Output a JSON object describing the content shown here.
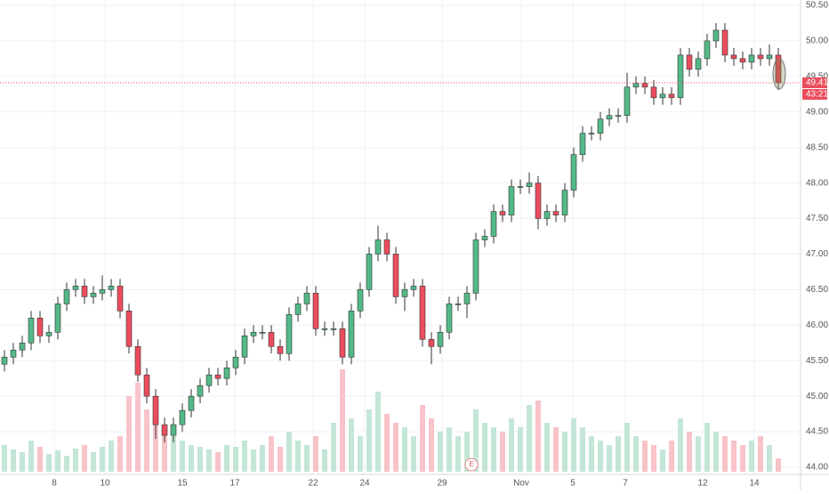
{
  "chart_data": {
    "type": "candlestick",
    "open": [
      45.45,
      45.55,
      45.65,
      45.75,
      46.1,
      45.85,
      45.9,
      46.3,
      46.5,
      46.55,
      46.4,
      46.45,
      46.5,
      46.55,
      46.2,
      45.7,
      45.3,
      45.0,
      44.6,
      44.45,
      44.6,
      44.8,
      45.0,
      45.15,
      45.3,
      45.25,
      45.4,
      45.55,
      45.85,
      45.9,
      45.9,
      45.7,
      45.6,
      46.15,
      46.3,
      46.45,
      45.95,
      45.95,
      45.95,
      45.55,
      46.2,
      46.5,
      47.0,
      47.2,
      47.0,
      46.4,
      46.5,
      46.55,
      45.8,
      45.7,
      45.9,
      46.3,
      46.3,
      46.45,
      47.2,
      47.25,
      47.6,
      47.55,
      47.95,
      47.95,
      48.0,
      47.5,
      47.6,
      47.55,
      47.9,
      48.4,
      48.7,
      48.7,
      48.9,
      48.95,
      48.95,
      49.35,
      49.4,
      49.35,
      49.2,
      49.25,
      49.2,
      49.8,
      49.6,
      49.75,
      50.0,
      50.15,
      49.8,
      49.75,
      49.7,
      49.8,
      49.75,
      49.8
    ],
    "high": [
      45.65,
      45.75,
      45.85,
      46.2,
      46.2,
      46.0,
      46.4,
      46.6,
      46.65,
      46.65,
      46.55,
      46.7,
      46.65,
      46.65,
      46.3,
      45.8,
      45.4,
      45.1,
      44.7,
      44.7,
      44.9,
      45.1,
      45.25,
      45.4,
      45.4,
      45.5,
      45.65,
      45.95,
      46.0,
      46.0,
      46.0,
      45.8,
      46.25,
      46.4,
      46.55,
      46.55,
      46.05,
      46.05,
      46.05,
      46.3,
      46.6,
      47.1,
      47.4,
      47.3,
      47.1,
      46.6,
      46.65,
      46.65,
      45.9,
      46.0,
      46.4,
      46.4,
      46.55,
      47.3,
      47.35,
      47.7,
      47.7,
      48.05,
      48.05,
      48.15,
      48.1,
      47.7,
      47.7,
      48.0,
      48.5,
      48.8,
      48.8,
      49.0,
      49.05,
      49.05,
      49.55,
      49.5,
      49.5,
      49.45,
      49.35,
      49.35,
      49.9,
      49.9,
      49.85,
      50.1,
      50.25,
      50.25,
      49.9,
      49.85,
      49.9,
      49.9,
      49.95,
      49.9
    ],
    "low": [
      45.35,
      45.45,
      45.55,
      45.65,
      45.75,
      45.75,
      45.8,
      46.2,
      46.4,
      46.3,
      46.3,
      46.35,
      46.4,
      46.1,
      45.6,
      45.2,
      44.9,
      44.4,
      44.35,
      44.35,
      44.5,
      44.7,
      44.9,
      45.05,
      45.15,
      45.15,
      45.3,
      45.45,
      45.75,
      45.8,
      45.6,
      45.5,
      45.5,
      46.05,
      46.2,
      45.85,
      45.85,
      45.85,
      45.45,
      45.45,
      46.1,
      46.4,
      46.9,
      46.9,
      46.3,
      46.2,
      46.4,
      45.7,
      45.45,
      45.6,
      45.8,
      46.2,
      46.1,
      46.35,
      47.1,
      47.15,
      47.45,
      47.45,
      47.85,
      47.85,
      47.35,
      47.4,
      47.45,
      47.45,
      47.8,
      48.3,
      48.6,
      48.6,
      48.8,
      48.85,
      48.85,
      49.25,
      49.25,
      49.1,
      49.1,
      49.1,
      49.1,
      49.5,
      49.5,
      49.65,
      49.9,
      49.7,
      49.65,
      49.6,
      49.6,
      49.65,
      49.65,
      49.31
    ],
    "close": [
      45.55,
      45.65,
      45.75,
      46.1,
      45.85,
      45.9,
      46.3,
      46.5,
      46.55,
      46.4,
      46.45,
      46.5,
      46.55,
      46.2,
      45.7,
      45.3,
      45.0,
      44.6,
      44.45,
      44.6,
      44.8,
      45.0,
      45.15,
      45.3,
      45.25,
      45.4,
      45.55,
      45.85,
      45.9,
      45.9,
      45.7,
      45.6,
      46.15,
      46.3,
      46.45,
      45.95,
      45.95,
      45.95,
      45.55,
      46.2,
      46.5,
      47.0,
      47.2,
      47.0,
      46.4,
      46.5,
      46.55,
      45.8,
      45.7,
      45.9,
      46.3,
      46.3,
      46.45,
      47.2,
      47.25,
      47.6,
      47.55,
      47.95,
      47.95,
      48.0,
      47.5,
      47.6,
      47.55,
      47.9,
      48.4,
      48.7,
      48.7,
      48.9,
      48.95,
      48.95,
      49.35,
      49.4,
      49.35,
      49.2,
      49.25,
      49.2,
      49.8,
      49.6,
      49.75,
      50.0,
      50.15,
      49.8,
      49.75,
      49.7,
      49.8,
      49.75,
      49.8,
      49.41
    ],
    "volume": [
      30,
      25,
      22,
      35,
      28,
      20,
      24,
      18,
      26,
      30,
      22,
      28,
      35,
      40,
      85,
      100,
      70,
      60,
      45,
      40,
      35,
      30,
      28,
      25,
      22,
      30,
      28,
      35,
      25,
      30,
      40,
      28,
      45,
      35,
      30,
      40,
      25,
      55,
      115,
      60,
      40,
      70,
      90,
      65,
      55,
      50,
      40,
      75,
      60,
      45,
      50,
      40,
      45,
      70,
      55,
      50,
      45,
      60,
      50,
      75,
      80,
      55,
      50,
      45,
      60,
      50,
      40,
      35,
      30,
      40,
      55,
      40,
      35,
      30,
      25,
      35,
      60,
      45,
      40,
      55,
      45,
      40,
      35,
      30,
      35,
      40,
      30,
      15
    ],
    "up_color": "#53b987",
    "down_color": "#eb4d5c",
    "volume_up_color": "#c4e6d6",
    "volume_down_color": "#f8c3c9",
    "ylim": [
      44.0,
      50.5
    ],
    "yticks": [
      {
        "value": 44.0,
        "label": "44.00"
      },
      {
        "value": 44.5,
        "label": "44.50"
      },
      {
        "value": 45.0,
        "label": "45.00"
      },
      {
        "value": 45.5,
        "label": "45.50"
      },
      {
        "value": 46.0,
        "label": "46.00"
      },
      {
        "value": 46.5,
        "label": "46.50"
      },
      {
        "value": 47.0,
        "label": "47.00"
      },
      {
        "value": 47.5,
        "label": "47.50"
      },
      {
        "value": 48.0,
        "label": "48.00"
      },
      {
        "value": 48.5,
        "label": "48.50"
      },
      {
        "value": 49.0,
        "label": "49.00"
      },
      {
        "value": 49.5,
        "label": "49.50"
      },
      {
        "value": 50.0,
        "label": "50.00"
      },
      {
        "value": 50.5,
        "label": "50.50"
      }
    ],
    "xticks": [
      {
        "value": 5.6,
        "label": "8"
      },
      {
        "value": 11.3,
        "label": "10"
      },
      {
        "value": 20,
        "label": "15"
      },
      {
        "value": 25.9,
        "label": "17"
      },
      {
        "value": 34.7,
        "label": "22"
      },
      {
        "value": 40.5,
        "label": "24"
      },
      {
        "value": 49.2,
        "label": "29"
      },
      {
        "value": 58.1,
        "label": "Nov"
      },
      {
        "value": 63.9,
        "label": "5"
      },
      {
        "value": 69.8,
        "label": "7"
      },
      {
        "value": 78.5,
        "label": "12"
      },
      {
        "value": 84.3,
        "label": "14"
      }
    ],
    "grid": true,
    "last_price": 49.41,
    "countdown": "43:21",
    "event_marker": {
      "index": 52.5,
      "label": "E"
    }
  }
}
